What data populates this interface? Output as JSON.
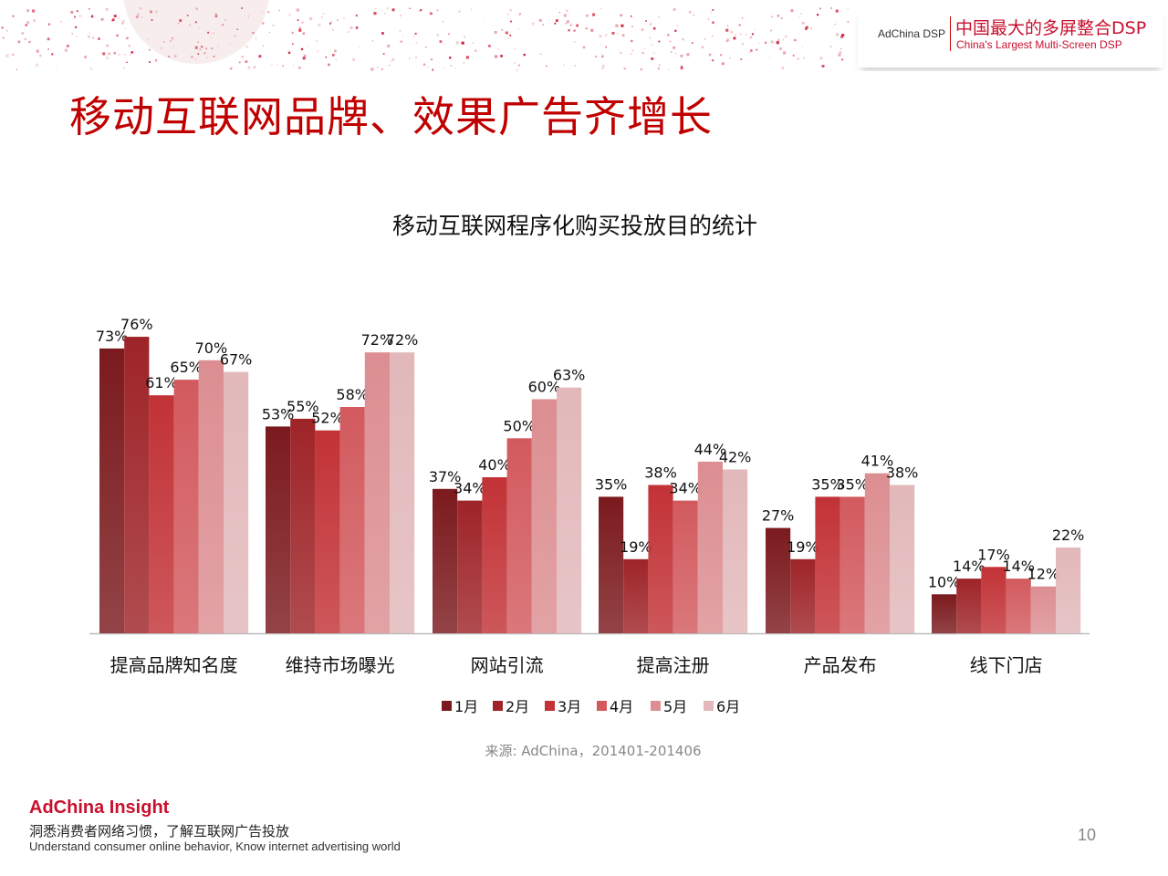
{
  "header": {
    "brand_small": "AdChina DSP",
    "brand_cn": "中国最大的多屏整合DSP",
    "brand_en": "China's Largest Multi-Screen DSP"
  },
  "slide": {
    "title": "移动互联网品牌、效果广告齐增长",
    "source": "来源: AdChina，201401-201406",
    "page_number": "10"
  },
  "footer": {
    "brand": "AdChina Insight",
    "tagline_cn": "洞悉消费者网络习惯，了解互联网广告投放",
    "tagline_en": "Understand consumer online behavior, Know internet advertising world"
  },
  "colors": {
    "accent": "#c00000",
    "series": [
      "#7b1a1e",
      "#9e2428",
      "#c23236",
      "#d25a5e",
      "#dc8e91",
      "#e2b8ba"
    ]
  },
  "chart_data": {
    "type": "bar",
    "title": "移动互联网程序化购买投放目的统计",
    "categories": [
      "提高品牌知名度",
      "维持市场曝光",
      "网站引流",
      "提高注册",
      "产品发布",
      "线下门店"
    ],
    "series": [
      {
        "name": "1月",
        "values": [
          73,
          53,
          37,
          35,
          27,
          10
        ]
      },
      {
        "name": "2月",
        "values": [
          76,
          55,
          34,
          19,
          19,
          14
        ]
      },
      {
        "name": "3月",
        "values": [
          61,
          52,
          40,
          38,
          35,
          17
        ]
      },
      {
        "name": "4月",
        "values": [
          65,
          58,
          50,
          34,
          35,
          14
        ]
      },
      {
        "name": "5月",
        "values": [
          70,
          72,
          60,
          44,
          41,
          12
        ]
      },
      {
        "name": "6月",
        "values": [
          67,
          72,
          63,
          42,
          38,
          22
        ]
      }
    ],
    "value_suffix": "%",
    "ylim": [
      0,
      80
    ],
    "legend": "bottom",
    "grid": false
  }
}
